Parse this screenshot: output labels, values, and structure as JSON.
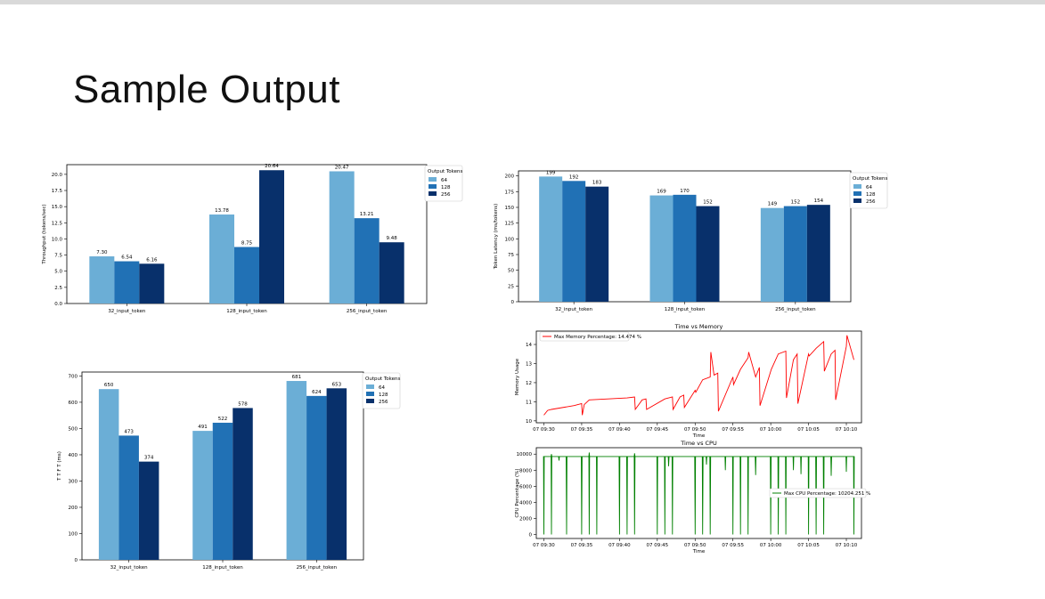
{
  "slide": {
    "title": "Sample Output"
  },
  "colors": {
    "c64": "#6baed6",
    "c128": "#2171b5",
    "c256": "#08306b",
    "memory": "#ff0000",
    "cpu": "#008000"
  },
  "chart_data": [
    {
      "id": "throughput",
      "type": "bar",
      "title": "",
      "xlabel": "",
      "ylabel": "Throughput (tokens/sec)",
      "categories": [
        "32_input_token",
        "128_input_token",
        "256_input_token"
      ],
      "series": [
        {
          "name": "64",
          "values": [
            7.3,
            13.78,
            20.47
          ]
        },
        {
          "name": "128",
          "values": [
            6.54,
            8.75,
            13.21
          ]
        },
        {
          "name": "256",
          "values": [
            6.16,
            20.64,
            9.48
          ]
        }
      ],
      "value_labels": [
        [
          "7.30",
          "13.78",
          "20.47"
        ],
        [
          "6.54",
          "8.75",
          "13.21"
        ],
        [
          "6.16",
          "20.64",
          "9.48"
        ]
      ],
      "ylim": [
        0,
        21.5
      ],
      "yticks": [
        0,
        2.5,
        5,
        7.5,
        10,
        12.5,
        15,
        17.5,
        20
      ],
      "ytick_labels": [
        "0.0",
        "2.5",
        "5.0",
        "7.5",
        "10.0",
        "12.5",
        "15.0",
        "17.5",
        "20.0"
      ],
      "legend_title": "Output Tokens",
      "legend_position": "outside-right"
    },
    {
      "id": "latency",
      "type": "bar",
      "title": "",
      "xlabel": "",
      "ylabel": "Token Latency (ms/tokens)",
      "categories": [
        "32_input_token",
        "128_input_token",
        "256_input_token"
      ],
      "series": [
        {
          "name": "64",
          "values": [
            199,
            169,
            149
          ]
        },
        {
          "name": "128",
          "values": [
            192,
            170,
            152
          ]
        },
        {
          "name": "256",
          "values": [
            183,
            152,
            154
          ]
        }
      ],
      "value_labels": [
        [
          "199",
          "169",
          "149"
        ],
        [
          "192",
          "170",
          "152"
        ],
        [
          "183",
          "152",
          "154"
        ]
      ],
      "ylim": [
        0,
        208
      ],
      "yticks": [
        0,
        25,
        50,
        75,
        100,
        125,
        150,
        175,
        200
      ],
      "ytick_labels": [
        "0",
        "25",
        "50",
        "75",
        "100",
        "125",
        "150",
        "175",
        "200"
      ],
      "legend_title": "Output Tokens",
      "legend_position": "outside-right"
    },
    {
      "id": "ttft",
      "type": "bar",
      "title": "",
      "xlabel": "",
      "ylabel": "T T F T (ms)",
      "categories": [
        "32_input_token",
        "128_input_token",
        "256_input_token"
      ],
      "series": [
        {
          "name": "64",
          "values": [
            650,
            491,
            681
          ]
        },
        {
          "name": "128",
          "values": [
            473,
            522,
            624
          ]
        },
        {
          "name": "256",
          "values": [
            374,
            578,
            653
          ]
        }
      ],
      "value_labels": [
        [
          "650",
          "491",
          "681"
        ],
        [
          "473",
          "522",
          "624"
        ],
        [
          "374",
          "578",
          "653"
        ]
      ],
      "ylim": [
        0,
        715
      ],
      "yticks": [
        0,
        100,
        200,
        300,
        400,
        500,
        600,
        700
      ],
      "ytick_labels": [
        "0",
        "100",
        "200",
        "300",
        "400",
        "500",
        "600",
        "700"
      ],
      "legend_title": "Output Tokens",
      "legend_position": "outside-right"
    },
    {
      "id": "memory",
      "type": "line",
      "title": "Time vs Memory",
      "xlabel": "Time",
      "ylabel": "Memory Usage",
      "xlim": [
        "07 09:29",
        "07 10:12"
      ],
      "ylim": [
        9.9,
        14.7
      ],
      "xtick_labels": [
        "07 09:30",
        "07 09:35",
        "07 09:40",
        "07 09:45",
        "07 09:50",
        "07 09:55",
        "07 10:00",
        "07 10:05",
        "07 10:10"
      ],
      "yticks": [
        10,
        11,
        12,
        13,
        14
      ],
      "ytick_labels": [
        "10",
        "11",
        "12",
        "13",
        "14"
      ],
      "series": [
        {
          "name": "Max Memory Percentage: 14.474 %",
          "x": [
            "07 09:30",
            "07 09:30:30",
            "07 09:31",
            "07 09:34",
            "07 09:35",
            "07 09:35:05",
            "07 09:35:20",
            "07 09:36",
            "07 09:41",
            "07 09:42",
            "07 09:42:05",
            "07 09:43",
            "07 09:43:30",
            "07 09:43:35",
            "07 09:46",
            "07 09:47",
            "07 09:47:05",
            "07 09:48",
            "07 09:48:30",
            "07 09:48:35",
            "07 09:50",
            "07 09:50:05",
            "07 09:51",
            "07 09:52",
            "07 09:52:05",
            "07 09:52:30",
            "07 09:53",
            "07 09:53:05",
            "07 09:55",
            "07 09:55:05",
            "07 09:56",
            "07 09:57",
            "07 09:57:05",
            "07 09:58",
            "07 09:58:30",
            "07 09:58:35",
            "07 10:00",
            "07 10:00:05",
            "07 10:01",
            "07 10:02",
            "07 10:02:05",
            "07 10:03",
            "07 10:03:30",
            "07 10:03:35",
            "07 10:05",
            "07 10:05:05",
            "07 10:06",
            "07 10:07",
            "07 10:07:05",
            "07 10:08",
            "07 10:08:30",
            "07 10:08:35",
            "07 10:10",
            "07 10:10:05",
            "07 10:11"
          ],
          "y": [
            10.3,
            10.55,
            10.6,
            10.8,
            10.9,
            10.3,
            10.85,
            11.1,
            11.2,
            11.25,
            10.6,
            11.1,
            11.15,
            10.6,
            11.15,
            11.25,
            10.6,
            11.25,
            11.35,
            10.7,
            11.6,
            11.5,
            12.15,
            12.3,
            13.6,
            12.4,
            12.5,
            10.5,
            12.3,
            11.9,
            12.7,
            13.3,
            13.6,
            12.3,
            12.8,
            10.8,
            12.6,
            12.7,
            13.5,
            13.65,
            11.2,
            13.2,
            13.5,
            10.9,
            13.5,
            13.4,
            13.8,
            14.15,
            12.6,
            13.5,
            13.7,
            11.1,
            13.9,
            14.474,
            13.2
          ]
        }
      ],
      "legend_position": "upper-left"
    },
    {
      "id": "cpu",
      "type": "line",
      "title": "Time vs CPU",
      "xlabel": "Time",
      "ylabel": "CPU Percentage (%)",
      "xlim": [
        "07 09:29",
        "07 10:12"
      ],
      "ylim": [
        -500,
        10800
      ],
      "xtick_labels": [
        "07 09:30",
        "07 09:35",
        "07 09:40",
        "07 09:45",
        "07 09:50",
        "07 09:55",
        "07 10:00",
        "07 10:05",
        "07 10:10"
      ],
      "yticks": [
        0,
        2000,
        4000,
        6000,
        8000,
        10000
      ],
      "ytick_labels": [
        "0",
        "2000",
        "4000",
        "6000",
        "8000",
        "10000"
      ],
      "series": [
        {
          "name": "Max CPU Percentage: 10204.251 %",
          "baseline": 9700,
          "dips": [
            {
              "x": "07 09:30",
              "y": 0
            },
            {
              "x": "07 09:31",
              "y": 0
            },
            {
              "x": "07 09:33",
              "y": 0
            },
            {
              "x": "07 09:35",
              "y": 0
            },
            {
              "x": "07 09:36",
              "y": 0
            },
            {
              "x": "07 09:37",
              "y": 0
            },
            {
              "x": "07 09:40",
              "y": 0
            },
            {
              "x": "07 09:41",
              "y": 0
            },
            {
              "x": "07 09:42",
              "y": 0
            },
            {
              "x": "07 09:45",
              "y": 0
            },
            {
              "x": "07 09:46",
              "y": 0
            },
            {
              "x": "07 09:47",
              "y": 0
            },
            {
              "x": "07 09:50",
              "y": 0
            },
            {
              "x": "07 09:51",
              "y": 0
            },
            {
              "x": "07 09:52",
              "y": 0
            },
            {
              "x": "07 09:55",
              "y": 0
            },
            {
              "x": "07 09:56",
              "y": 0
            },
            {
              "x": "07 09:57",
              "y": 0
            },
            {
              "x": "07 10:00",
              "y": 0
            },
            {
              "x": "07 10:01",
              "y": 0
            },
            {
              "x": "07 10:02",
              "y": 0
            },
            {
              "x": "07 10:05",
              "y": 0
            },
            {
              "x": "07 10:06",
              "y": 0
            },
            {
              "x": "07 10:07",
              "y": 0
            },
            {
              "x": "07 10:11",
              "y": 0
            },
            {
              "x": "07 09:46:30",
              "y": 8500
            },
            {
              "x": "07 09:51:30",
              "y": 8700
            },
            {
              "x": "07 09:54",
              "y": 8000
            },
            {
              "x": "07 09:58",
              "y": 7400
            },
            {
              "x": "07 10:03",
              "y": 8000
            },
            {
              "x": "07 10:04",
              "y": 7500
            },
            {
              "x": "07 10:08",
              "y": 7300
            },
            {
              "x": "07 10:10",
              "y": 7800
            },
            {
              "x": "07 09:32",
              "y": 9200
            }
          ],
          "peaks": [
            {
              "x": "07 09:36",
              "y": 10204.251
            },
            {
              "x": "07 09:42",
              "y": 10100
            },
            {
              "x": "07 09:31",
              "y": 10000
            }
          ]
        }
      ],
      "legend_position": "center-right"
    }
  ]
}
